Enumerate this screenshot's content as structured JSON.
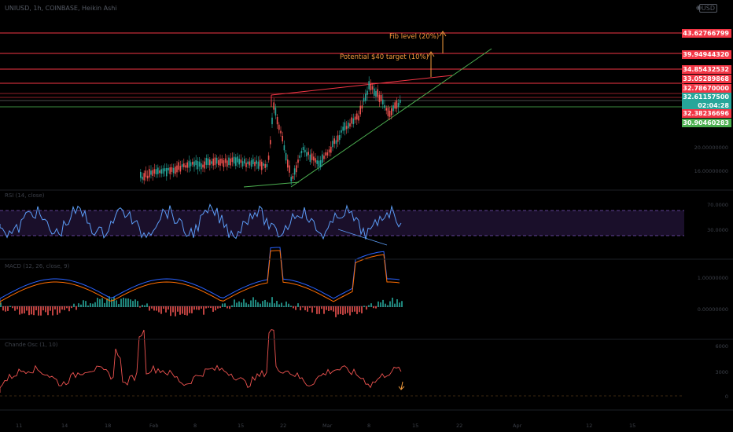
{
  "header": {
    "symbol": "UNIUSD, 1h, COINBASE, Heikin Ashi",
    "menu_icon": "eye-icon",
    "settings_label": "USD"
  },
  "annotations": {
    "fib_label": "Fib level (20%)",
    "target_label": "Potential $40 target (10%)",
    "arrow_color": "#f39c3d"
  },
  "price_axis": {
    "labels": [
      {
        "text": "43.62766799",
        "color": "#f23645"
      },
      {
        "text": "39.94944320",
        "color": "#f23645"
      },
      {
        "text": "34.85432532",
        "color": "#f23645"
      },
      {
        "text": "33.05289868",
        "color": "#f23645"
      },
      {
        "text": "32.78670000",
        "color": "#f23645"
      },
      {
        "text": "32.61157500",
        "color": "#26a69a",
        "timer": "02:04:28"
      },
      {
        "text": "32.38236696",
        "color": "#f23645"
      },
      {
        "text": "30.90460283",
        "color": "#4caf50"
      }
    ],
    "faint": [
      "",
      "20.00000000",
      "16.00000000"
    ]
  },
  "indicators": {
    "rsi_title": "RSI (14, close)",
    "rsi_levels": [
      "70.0000",
      "30.0000"
    ],
    "macd_title": "MACD (12, 26, close, 9)",
    "macd_levels": [
      "1.00000000",
      "0.00000000"
    ],
    "osc_title": "Chande Osc (1, 10)",
    "osc_levels": [
      "6000",
      "3000",
      "0"
    ]
  },
  "time_axis": [
    "11",
    "14",
    "18",
    "Feb",
    "8",
    "15",
    "22",
    "Mar",
    "8",
    "15",
    "22",
    "Apr",
    "12",
    "15"
  ],
  "colors": {
    "up": "#26a69a",
    "down": "#ef5350",
    "resistance": "#f23645",
    "support": "#4caf50"
  }
}
